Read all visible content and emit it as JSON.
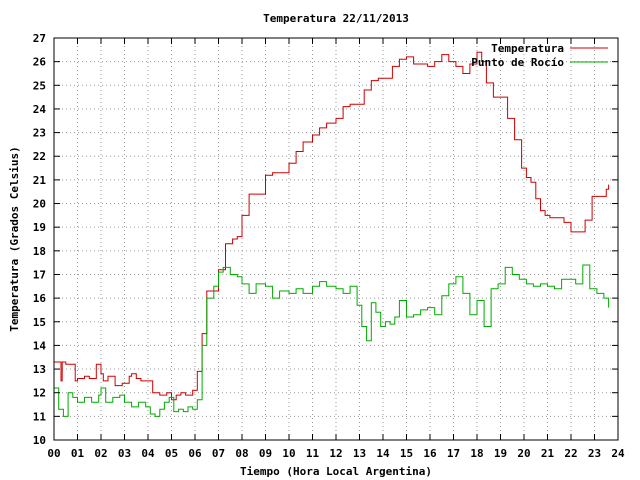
{
  "chart_data": {
    "type": "line",
    "title": "Temperatura 22/11/2013",
    "xlabel": "Tiempo (Hora Local Argentina)",
    "ylabel": "Temperatura (Grados Celsius)",
    "xlim": [
      0,
      24
    ],
    "ylim": [
      10,
      27
    ],
    "xticks": [
      "00",
      "01",
      "02",
      "03",
      "04",
      "05",
      "06",
      "07",
      "08",
      "09",
      "10",
      "11",
      "12",
      "13",
      "14",
      "15",
      "16",
      "17",
      "18",
      "19",
      "20",
      "21",
      "22",
      "23",
      "24"
    ],
    "yticks": [
      10,
      11,
      12,
      13,
      14,
      15,
      16,
      17,
      18,
      19,
      20,
      21,
      22,
      23,
      24,
      25,
      26,
      27
    ],
    "grid": true,
    "legend_position": "top-right",
    "series": [
      {
        "name": "Temperatura",
        "color": "#cc0000",
        "x": [
          0,
          0.3,
          0.35,
          0.5,
          0.9,
          1.0,
          1.3,
          1.5,
          1.8,
          2.0,
          2.1,
          2.3,
          2.6,
          2.9,
          3.2,
          3.3,
          3.5,
          3.7,
          4.0,
          4.2,
          4.5,
          4.8,
          5.0,
          5.2,
          5.4,
          5.6,
          5.9,
          6.1,
          6.3,
          6.5,
          6.7,
          7.0,
          7.3,
          7.6,
          7.8,
          8.0,
          8.3,
          8.6,
          9.0,
          9.3,
          9.6,
          10.0,
          10.3,
          10.6,
          11.0,
          11.3,
          11.6,
          12.0,
          12.3,
          12.6,
          12.9,
          13.2,
          13.5,
          13.8,
          14.1,
          14.4,
          14.7,
          15.0,
          15.3,
          15.6,
          15.9,
          16.2,
          16.5,
          16.8,
          17.1,
          17.4,
          17.7,
          18.0,
          18.2,
          18.4,
          18.7,
          19.0,
          19.3,
          19.6,
          19.9,
          20.1,
          20.3,
          20.5,
          20.7,
          20.9,
          21.1,
          21.4,
          21.7,
          22.0,
          22.3,
          22.6,
          22.9,
          23.2,
          23.5,
          23.6
        ],
        "y": [
          13.3,
          12.5,
          13.3,
          13.2,
          12.5,
          12.6,
          12.7,
          12.6,
          13.2,
          12.8,
          12.5,
          12.7,
          12.3,
          12.4,
          12.7,
          12.8,
          12.6,
          12.5,
          12.5,
          12.0,
          11.9,
          12.0,
          11.7,
          11.9,
          12.0,
          11.9,
          12.1,
          12.9,
          14.5,
          16.3,
          16.3,
          17.2,
          18.3,
          18.5,
          18.6,
          19.5,
          20.4,
          20.4,
          21.2,
          21.3,
          21.3,
          21.7,
          22.2,
          22.6,
          22.9,
          23.2,
          23.4,
          23.6,
          24.1,
          24.2,
          24.2,
          24.8,
          25.2,
          25.3,
          25.3,
          25.8,
          26.1,
          26.2,
          25.9,
          25.9,
          25.8,
          26.0,
          26.3,
          26.0,
          25.8,
          25.5,
          25.9,
          26.4,
          26.0,
          25.1,
          24.5,
          24.5,
          23.6,
          22.7,
          21.5,
          21.1,
          20.9,
          20.2,
          19.7,
          19.5,
          19.4,
          19.4,
          19.2,
          18.8,
          18.8,
          19.3,
          20.3,
          20.3,
          20.6,
          20.8
        ]
      },
      {
        "name": "Punto de Rocío",
        "color": "#00aa00",
        "x": [
          0,
          0.2,
          0.4,
          0.6,
          0.8,
          1.0,
          1.3,
          1.6,
          1.9,
          2.0,
          2.2,
          2.5,
          2.8,
          3.0,
          3.3,
          3.6,
          3.9,
          4.1,
          4.3,
          4.5,
          4.7,
          4.9,
          5.1,
          5.3,
          5.5,
          5.7,
          5.9,
          6.1,
          6.3,
          6.5,
          6.8,
          7.0,
          7.2,
          7.5,
          7.8,
          8.0,
          8.3,
          8.6,
          9.0,
          9.3,
          9.6,
          10.0,
          10.3,
          10.6,
          11.0,
          11.3,
          11.6,
          12.0,
          12.3,
          12.6,
          12.9,
          13.1,
          13.3,
          13.5,
          13.7,
          13.9,
          14.1,
          14.3,
          14.5,
          14.7,
          15.0,
          15.3,
          15.6,
          15.9,
          16.2,
          16.5,
          16.8,
          17.1,
          17.4,
          17.7,
          18.0,
          18.3,
          18.6,
          18.9,
          19.2,
          19.5,
          19.8,
          20.1,
          20.4,
          20.7,
          21.0,
          21.3,
          21.6,
          21.9,
          22.2,
          22.5,
          22.8,
          23.1,
          23.4,
          23.6
        ],
        "y": [
          12.2,
          11.3,
          11.0,
          12.0,
          11.8,
          11.6,
          11.8,
          11.6,
          11.9,
          12.2,
          11.6,
          11.8,
          11.9,
          11.6,
          11.4,
          11.6,
          11.4,
          11.1,
          11.0,
          11.3,
          11.6,
          11.8,
          11.2,
          11.3,
          11.2,
          11.4,
          11.3,
          11.7,
          14.0,
          16.0,
          16.5,
          17.1,
          17.3,
          17.0,
          16.9,
          16.6,
          16.2,
          16.6,
          16.5,
          16.0,
          16.3,
          16.2,
          16.4,
          16.2,
          16.5,
          16.7,
          16.5,
          16.4,
          16.2,
          16.5,
          15.7,
          14.8,
          14.2,
          15.8,
          15.4,
          14.8,
          15.0,
          14.9,
          15.2,
          15.9,
          15.2,
          15.3,
          15.5,
          15.6,
          15.3,
          16.1,
          16.6,
          16.9,
          16.2,
          15.3,
          15.9,
          14.8,
          16.4,
          16.6,
          17.3,
          17.0,
          16.8,
          16.6,
          16.5,
          16.6,
          16.5,
          16.4,
          16.8,
          16.8,
          16.6,
          17.4,
          16.4,
          16.2,
          16.0,
          15.6
        ]
      }
    ]
  }
}
